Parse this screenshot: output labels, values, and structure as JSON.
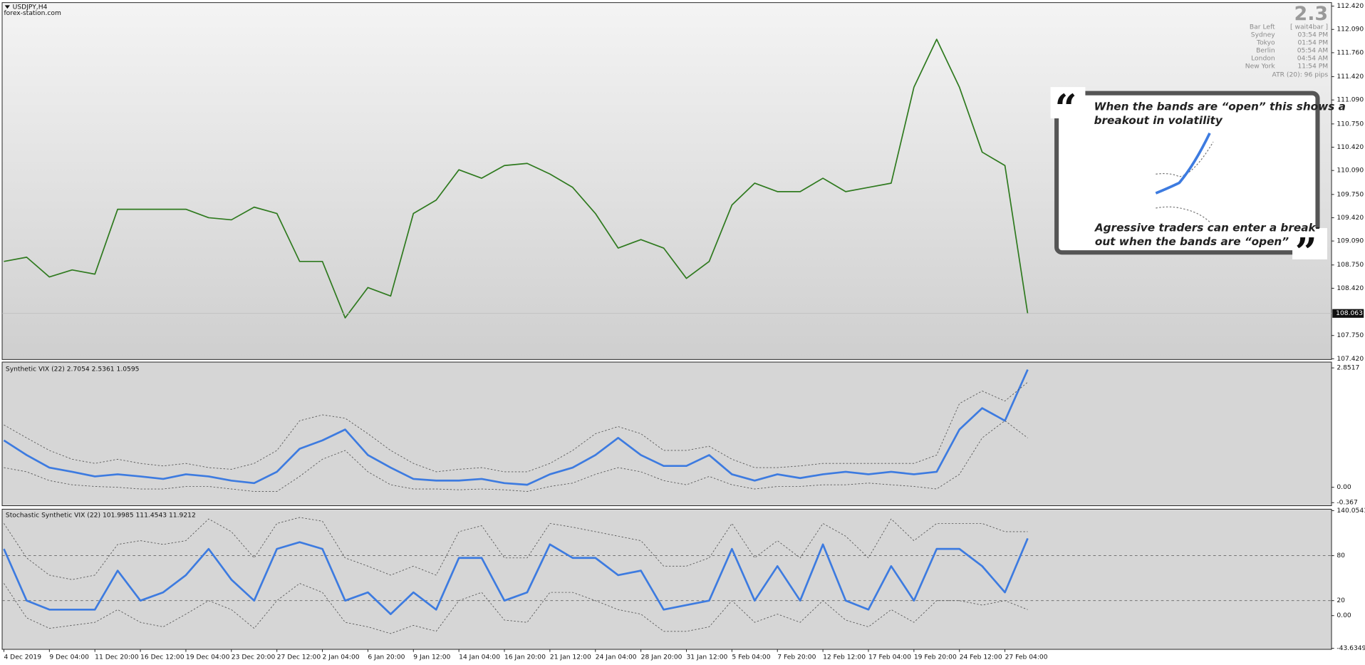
{
  "chart_data": [
    {
      "type": "line",
      "title": "USDJPY,H4",
      "subtitle": "forex-station.com",
      "color": "#2f7a1f",
      "values": [
        108.8,
        108.86,
        108.58,
        108.68,
        108.62,
        109.54,
        109.54,
        109.54,
        109.54,
        109.42,
        109.39,
        109.57,
        109.48,
        108.8,
        108.8,
        108.0,
        108.43,
        108.31,
        109.48,
        109.67,
        110.1,
        109.98,
        110.16,
        110.19,
        110.04,
        109.85,
        109.48,
        108.99,
        109.11,
        108.99,
        108.56,
        108.8,
        109.6,
        109.91,
        109.79,
        109.79,
        109.98,
        109.79,
        109.85,
        109.91,
        111.27,
        111.95,
        111.27,
        110.35,
        110.16,
        108.06
      ],
      "last_price": 108.063,
      "ylim": [
        107.41,
        112.47
      ],
      "yticks": [
        {
          "value": 112.42,
          "label": "112.420"
        },
        {
          "value": 112.09,
          "label": "112.090"
        },
        {
          "value": 111.76,
          "label": "111.760"
        },
        {
          "value": 111.42,
          "label": "111.420"
        },
        {
          "value": 111.09,
          "label": "111.090"
        },
        {
          "value": 110.75,
          "label": "110.750"
        },
        {
          "value": 110.42,
          "label": "110.420"
        },
        {
          "value": 110.09,
          "label": "110.090"
        },
        {
          "value": 109.75,
          "label": "109.750"
        },
        {
          "value": 109.42,
          "label": "109.420"
        },
        {
          "value": 109.09,
          "label": "109.090"
        },
        {
          "value": 108.75,
          "label": "108.750"
        },
        {
          "value": 108.42,
          "label": "108.420"
        },
        {
          "value": 107.75,
          "label": "107.750"
        },
        {
          "value": 107.42,
          "label": "107.420"
        }
      ]
    },
    {
      "type": "line",
      "title": "Synthetic VIX (22) 2.7054 2.5361 1.0595",
      "series": [
        {
          "color": "#3d7be0",
          "style": "solid",
          "values": [
            1.12,
            0.77,
            0.47,
            0.37,
            0.26,
            0.31,
            0.26,
            0.2,
            0.31,
            0.26,
            0.16,
            0.1,
            0.37,
            0.92,
            1.12,
            1.38,
            0.77,
            0.47,
            0.2,
            0.16,
            0.16,
            0.2,
            0.1,
            0.06,
            0.31,
            0.47,
            0.77,
            1.18,
            0.77,
            0.51,
            0.51,
            0.77,
            0.31,
            0.16,
            0.31,
            0.22,
            0.31,
            0.37,
            0.31,
            0.37,
            0.31,
            0.37,
            1.38,
            1.89,
            1.59,
            2.81
          ]
        },
        {
          "color": "#555555",
          "style": "dashed",
          "values": [
            1.49,
            1.18,
            0.88,
            0.67,
            0.57,
            0.67,
            0.57,
            0.51,
            0.57,
            0.47,
            0.43,
            0.57,
            0.88,
            1.59,
            1.73,
            1.65,
            1.28,
            0.88,
            0.57,
            0.37,
            0.43,
            0.47,
            0.37,
            0.37,
            0.57,
            0.88,
            1.28,
            1.45,
            1.28,
            0.88,
            0.88,
            0.98,
            0.67,
            0.47,
            0.47,
            0.51,
            0.57,
            0.57,
            0.57,
            0.57,
            0.57,
            0.77,
            2.0,
            2.3,
            2.06,
            2.51
          ]
        },
        {
          "color": "#555555",
          "style": "dashed",
          "values": [
            0.47,
            0.37,
            0.16,
            0.06,
            0.02,
            0,
            -0.04,
            -0.04,
            0.02,
            0.02,
            -0.04,
            -0.1,
            -0.1,
            0.26,
            0.67,
            0.88,
            0.37,
            0.06,
            -0.04,
            -0.04,
            -0.06,
            -0.04,
            -0.06,
            -0.1,
            0.02,
            0.1,
            0.31,
            0.47,
            0.37,
            0.16,
            0.06,
            0.26,
            0.06,
            -0.04,
            0.02,
            0.02,
            0.06,
            0.06,
            0.1,
            0.06,
            0.02,
            -0.04,
            0.31,
            1.18,
            1.59,
            1.18
          ]
        }
      ],
      "ylim": [
        -0.44,
        2.99
      ],
      "yticks": [
        2.8517,
        {
          "value": 0,
          "label": "0.00"
        },
        -0.367
      ]
    },
    {
      "type": "line",
      "title": "Stochastic Synthetic VIX (22) 101.9985 111.4543 11.9212",
      "categories": [
        "4 Dec 2019",
        null,
        "9 Dec 04:00",
        null,
        "11 Dec 20:00",
        null,
        "16 Dec 12:00",
        null,
        "19 Dec 04:00",
        null,
        "23 Dec 20:00",
        null,
        "27 Dec 12:00",
        null,
        "2 Jan 04:00",
        null,
        "6 Jan 20:00",
        null,
        "9 Jan 12:00",
        null,
        "14 Jan 04:00",
        null,
        "16 Jan 20:00",
        null,
        "21 Jan 12:00",
        null,
        "24 Jan 04:00",
        null,
        "28 Jan 20:00",
        null,
        "31 Jan 12:00",
        null,
        "5 Feb 04:00",
        null,
        "7 Feb 20:00",
        null,
        "12 Feb 12:00",
        null,
        "17 Feb 04:00",
        null,
        "19 Feb 20:00",
        null,
        "24 Feb 12:00",
        null,
        "27 Feb 04:00",
        null
      ],
      "series": [
        {
          "color": "#3d7be0",
          "style": "solid",
          "values": [
            89,
            20,
            8,
            8,
            8,
            60,
            20,
            31,
            54,
            89,
            48,
            20,
            89,
            98,
            89,
            20,
            31,
            2,
            31,
            8,
            77,
            77,
            20,
            31,
            95,
            77,
            77,
            54,
            60,
            8,
            14,
            20,
            89,
            20,
            66,
            20,
            95,
            20,
            8,
            66,
            20,
            89,
            89,
            66,
            31,
            103
          ]
        },
        {
          "color": "#555555",
          "style": "dashed",
          "values": [
            123,
            77,
            54,
            48,
            54,
            95,
            100,
            95,
            100,
            129,
            112,
            77,
            123,
            131,
            126,
            77,
            66,
            54,
            66,
            54,
            112,
            120,
            77,
            77,
            123,
            118,
            112,
            106,
            100,
            66,
            66,
            77,
            123,
            77,
            100,
            77,
            123,
            106,
            77,
            129,
            100,
            123,
            123,
            123,
            112,
            112
          ]
        },
        {
          "color": "#555555",
          "style": "dashed",
          "values": [
            43,
            -3,
            -17,
            -13,
            -9,
            8,
            -9,
            -15,
            2,
            20,
            8,
            -17,
            20,
            43,
            31,
            -9,
            -15,
            -24,
            -13,
            -21,
            20,
            31,
            -6,
            -9,
            31,
            31,
            20,
            8,
            2,
            -21,
            -21,
            -15,
            20,
            -9,
            2,
            -9,
            20,
            -6,
            -15,
            8,
            -9,
            20,
            20,
            14,
            20,
            8
          ]
        }
      ],
      "levels": [
        80,
        20
      ],
      "ylim": [
        -45,
        142
      ],
      "yticks": [
        140.0541,
        80,
        20,
        {
          "value": 0,
          "label": "0.00"
        },
        -43.6349
      ]
    }
  ],
  "info_panel": {
    "big": "2.3",
    "rows": [
      [
        "Bar Left",
        "[ wait4bar ]"
      ],
      [
        "Sydney",
        "03:54 PM"
      ],
      [
        "Tokyo",
        "01:54 PM"
      ],
      [
        "Berlin",
        "05:54 AM"
      ],
      [
        "London",
        "04:54 AM"
      ],
      [
        "New York",
        "11:54 PM"
      ]
    ],
    "atr": "ATR (20): 96 pips"
  },
  "annotation": {
    "top": [
      "When the bands are “open” this shows a",
      " breakout in volatility"
    ],
    "bottom": [
      "Agressive traders can enter a break-",
      "out when the bands are “open”"
    ]
  }
}
